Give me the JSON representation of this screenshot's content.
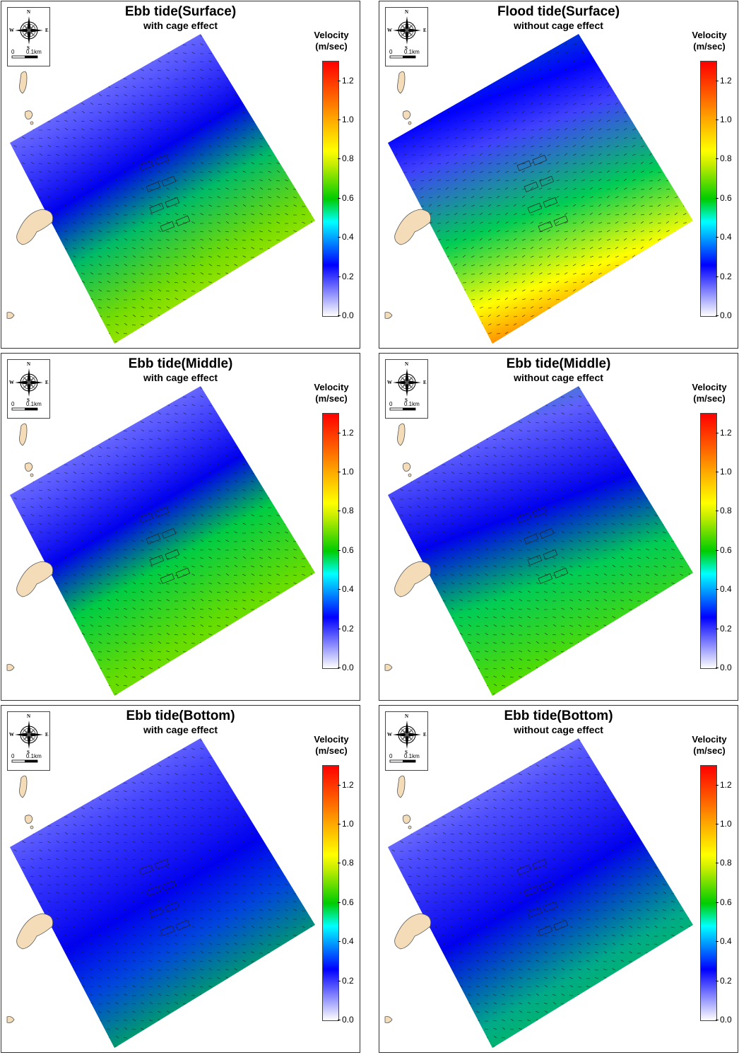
{
  "legend": {
    "title_line1": "Velocity",
    "title_line2": "(m/sec)",
    "ticks": [
      "1.2",
      "1.0",
      "0.8",
      "0.6",
      "0.4",
      "0.2",
      "0.0"
    ],
    "colors": [
      "#ffffff",
      "#0000ff",
      "#00ffff",
      "#00cc00",
      "#ffff00",
      "#ff0000"
    ]
  },
  "compass": {
    "n": "N",
    "s": "S",
    "e": "E",
    "w": "W",
    "scale_start": "0",
    "scale_end": "0.1km"
  },
  "panels": [
    {
      "title": "Ebb tide(Surface)",
      "subtitle": "with cage effect"
    },
    {
      "title": "Flood tide(Surface)",
      "subtitle": "without cage effect"
    },
    {
      "title": "Ebb tide(Middle)",
      "subtitle": "with cage effect"
    },
    {
      "title": "Ebb tide(Middle)",
      "subtitle": "without cage effect"
    },
    {
      "title": "Ebb tide(Bottom)",
      "subtitle": "with cage effect"
    },
    {
      "title": "Ebb tide(Bottom)",
      "subtitle": "without cage effect"
    }
  ]
}
